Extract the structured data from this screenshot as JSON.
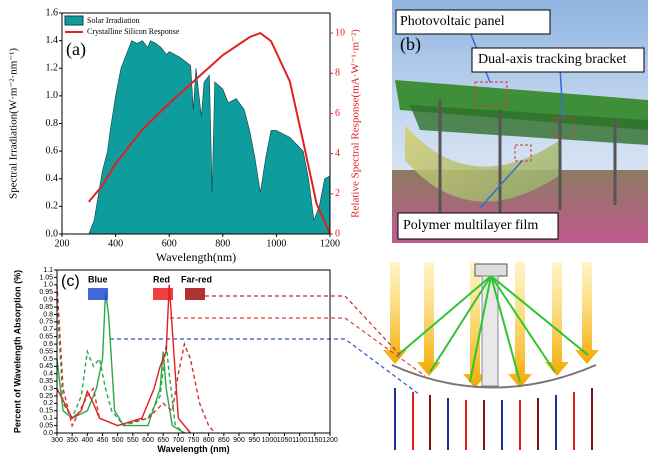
{
  "chart_data": [
    {
      "type": "area",
      "panel": "(a)",
      "xlabel": "Wavelength(nm)",
      "ylabel": "Spectral Irradiation(W·m⁻²·nm⁻¹)",
      "y2label": "Relative Spectral Response(mA·W⁻¹·m⁻²)",
      "xlim": [
        200,
        1200
      ],
      "xticks": [
        200,
        400,
        600,
        800,
        1000,
        1200
      ],
      "ylim": [
        0,
        1.6
      ],
      "yticks": [
        {
          "value": 0,
          "label": "0.0"
        },
        0.2,
        0.4,
        0.6,
        0.8,
        {
          "value": 1,
          "label": "1.0"
        },
        1.2,
        1.4,
        1.6
      ],
      "y2lim": [
        0,
        11
      ],
      "y2ticks": [
        0,
        2,
        4,
        6,
        8,
        10
      ],
      "legend": "upper left",
      "series": [
        {
          "name": "Solar Irradiation",
          "color": "#0e9c9c",
          "x": [
            300,
            320,
            350,
            370,
            380,
            400,
            420,
            440,
            460,
            480,
            500,
            520,
            530,
            550,
            570,
            590,
            600,
            620,
            640,
            660,
            680,
            690,
            700,
            720,
            730,
            750,
            760,
            770,
            800,
            820,
            850,
            880,
            900,
            920,
            940,
            960,
            980,
            1000,
            1050,
            1100,
            1120,
            1140,
            1160,
            1180,
            1200
          ],
          "values": [
            0,
            0.1,
            0.45,
            0.6,
            0.75,
            1.0,
            1.2,
            1.3,
            1.4,
            1.38,
            1.4,
            1.35,
            1.4,
            1.38,
            1.35,
            1.3,
            1.32,
            1.3,
            1.28,
            1.25,
            1.22,
            0.9,
            1.2,
            0.85,
            1.1,
            1.15,
            0.3,
            1.1,
            1.05,
            0.95,
            0.98,
            0.9,
            0.75,
            0.55,
            0.3,
            0.55,
            0.75,
            0.75,
            0.7,
            0.6,
            0.4,
            0.1,
            0.2,
            0.4,
            0.42
          ]
        },
        {
          "name": "Crystalline Silicon Response",
          "color": "#e02020",
          "axis": "y2",
          "x": [
            300,
            350,
            400,
            500,
            600,
            700,
            800,
            900,
            940,
            980,
            1050,
            1100,
            1150,
            1200
          ],
          "values": [
            1.6,
            2.4,
            3.5,
            5.2,
            6.5,
            7.7,
            8.9,
            9.8,
            10,
            9.6,
            7.6,
            4.6,
            1.5,
            0
          ]
        }
      ]
    },
    {
      "type": "line",
      "panel": "(c)",
      "xlabel": "Wavelength (nm)",
      "ylabel": "Percent of Wavelength Absorption (%)",
      "xlim": [
        300,
        1200
      ],
      "xticks": [
        300,
        350,
        400,
        450,
        500,
        550,
        600,
        650,
        700,
        750,
        800,
        850,
        900,
        950,
        1000,
        1050,
        1100,
        1150,
        1200
      ],
      "ylim": [
        0,
        1.1
      ],
      "yticks": [
        {
          "value": 0,
          "label": "0.0"
        },
        0.05,
        0.1,
        0.15,
        0.2,
        0.25,
        0.3,
        0.35,
        0.4,
        0.45,
        0.5,
        0.55,
        0.6,
        0.65,
        0.7,
        0.75,
        0.8,
        0.85,
        0.9,
        0.95,
        {
          "value": 1,
          "label": "1.0"
        },
        1.05,
        1.1
      ],
      "color_bands": [
        {
          "label": "Blue",
          "color": "#1f4fd0"
        },
        {
          "label": "Red",
          "color": "#e82020"
        },
        {
          "label": "Far-red",
          "color": "#a01010"
        }
      ],
      "series": [
        {
          "color": "#2aa84a",
          "dash": false,
          "x": [
            300,
            320,
            350,
            400,
            430,
            450,
            460,
            470,
            490,
            520,
            600,
            640,
            650,
            660,
            680,
            720
          ],
          "values": [
            0.5,
            0.15,
            0.1,
            0.15,
            0.3,
            0.5,
            0.95,
            0.8,
            0.15,
            0.05,
            0.05,
            0.3,
            0.55,
            0.3,
            0.05,
            0
          ]
        },
        {
          "color": "#2aa84a",
          "dash": true,
          "x": [
            300,
            320,
            350,
            380,
            400,
            420,
            440,
            460,
            480,
            520,
            600,
            640,
            660,
            670,
            690,
            720
          ],
          "values": [
            0.9,
            0.2,
            0.1,
            0.25,
            0.55,
            0.45,
            0.5,
            0.3,
            0.15,
            0.05,
            0.1,
            0.25,
            0.6,
            0.4,
            0.05,
            0
          ]
        },
        {
          "color": "#e02020",
          "dash": false,
          "x": [
            300,
            350,
            380,
            400,
            420,
            440,
            500,
            580,
            620,
            640,
            660,
            670,
            680,
            700,
            740
          ],
          "values": [
            0.3,
            0.1,
            0.15,
            0.28,
            0.2,
            0.1,
            0.05,
            0.1,
            0.3,
            0.45,
            0.55,
            1.0,
            0.7,
            0.1,
            0
          ]
        },
        {
          "color": "#d03030",
          "dash": true,
          "x": [
            300,
            320,
            350,
            400,
            420,
            440,
            500,
            600,
            650,
            680,
            700,
            720,
            740,
            770,
            800,
            820
          ],
          "values": [
            1.0,
            0.3,
            0.05,
            0.25,
            0.3,
            0.1,
            0.05,
            0.1,
            0.2,
            0.15,
            0.4,
            0.6,
            0.5,
            0.2,
            0.05,
            0
          ]
        }
      ]
    }
  ],
  "photo": {
    "panel": "(b)",
    "labels": [
      "Photovoltaic panel",
      "Dual-axis tracking bracket",
      "Polymer multilayer film"
    ]
  }
}
